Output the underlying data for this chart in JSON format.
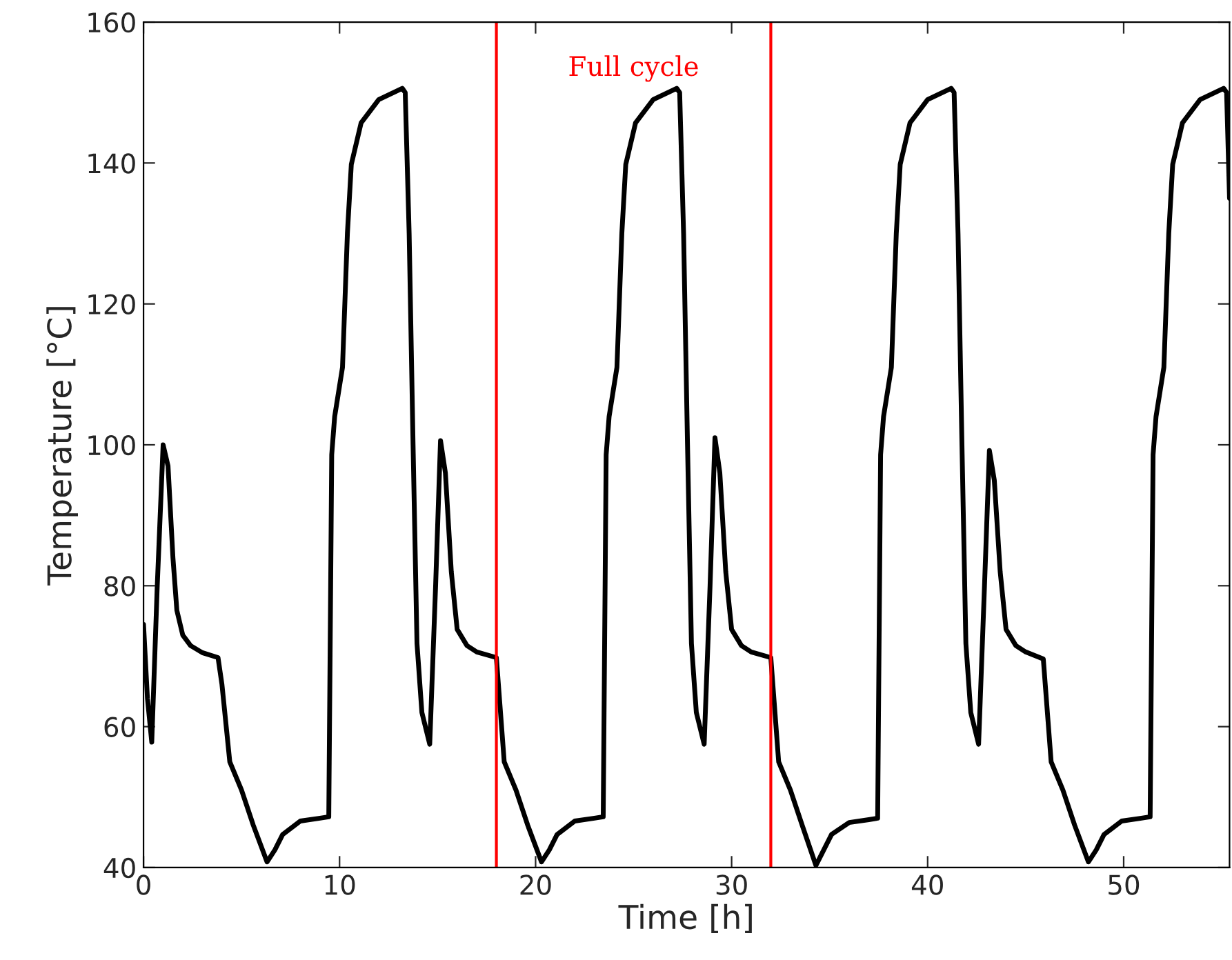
{
  "chart_data": {
    "type": "line",
    "xlabel": "Time [h]",
    "ylabel": "Temperature [°C]",
    "xlim": [
      0,
      55.4
    ],
    "ylim": [
      40,
      160
    ],
    "xticks": [
      0,
      10,
      20,
      30,
      40,
      50
    ],
    "yticks": [
      40,
      60,
      80,
      100,
      120,
      140,
      160
    ],
    "grid": false,
    "legend": false,
    "marker": "none",
    "line_style": "solid",
    "series": [
      {
        "color": "#000000",
        "x": [
          0,
          0.2,
          0.42,
          0.7,
          1.0,
          1.25,
          1.5,
          1.7,
          2.0,
          2.4,
          3.0,
          3.8,
          4.0,
          4.4,
          5.0,
          5.6,
          6.3,
          6.7,
          7.1,
          8.0,
          9.0,
          9.45,
          9.6,
          9.75,
          10.15,
          10.4,
          10.6,
          11.1,
          12.0,
          13.2,
          13.35,
          13.55,
          13.75,
          13.95,
          14.2,
          14.6,
          14.9,
          15.15,
          15.4,
          15.7,
          16.0,
          16.5,
          17.0,
          18.0,
          18.4,
          19.0,
          19.6,
          20.3,
          20.7,
          21.1,
          22.0,
          23.0,
          23.45,
          23.6,
          23.75,
          24.15,
          24.4,
          24.6,
          25.1,
          26.0,
          27.2,
          27.35,
          27.55,
          27.75,
          27.95,
          28.2,
          28.6,
          28.9,
          29.15,
          29.4,
          29.7,
          30.0,
          30.5,
          31.0,
          32.0,
          32.4,
          33.0,
          33.6,
          34.3,
          34.7,
          35.1,
          36.0,
          37.0,
          37.45,
          37.6,
          37.75,
          38.15,
          38.4,
          38.6,
          39.1,
          40.0,
          41.2,
          41.35,
          41.55,
          41.75,
          41.95,
          42.2,
          42.6,
          42.9,
          43.15,
          43.4,
          43.7,
          44.0,
          44.5,
          45.0,
          45.9,
          46.3,
          46.9,
          47.5,
          48.2,
          48.6,
          49.0,
          49.9,
          50.9,
          51.35,
          51.5,
          51.65,
          52.05,
          52.3,
          52.5,
          53.0,
          53.9,
          55.1,
          55.25,
          55.4
        ],
        "values": [
          74.5,
          64,
          57.8,
          80,
          100,
          97,
          84,
          76.5,
          73,
          71.5,
          70.5,
          69.8,
          66,
          55,
          51,
          46,
          40.8,
          42.5,
          44.7,
          46.6,
          47,
          47.2,
          98.6,
          104,
          111,
          130,
          139.8,
          145.7,
          149,
          150.6,
          150,
          130,
          100,
          71.8,
          62,
          57.5,
          80,
          100.6,
          96,
          82,
          73.8,
          71.5,
          70.6,
          69.8,
          55,
          51,
          46,
          40.8,
          42.5,
          44.7,
          46.6,
          47,
          47.2,
          98.6,
          104,
          111,
          130,
          139.8,
          145.7,
          149,
          150.6,
          150,
          130,
          100,
          71.8,
          62,
          57.5,
          80,
          101,
          96,
          82,
          73.8,
          71.5,
          70.6,
          69.8,
          55,
          51,
          46,
          40.3,
          42.5,
          44.7,
          46.4,
          46.8,
          47,
          98.6,
          104,
          111,
          130,
          139.8,
          145.7,
          149,
          150.6,
          150,
          130,
          100,
          71.8,
          62,
          57.5,
          80,
          99.2,
          95,
          82,
          73.8,
          71.5,
          70.6,
          69.6,
          55,
          51,
          46,
          40.8,
          42.5,
          44.7,
          46.6,
          47,
          47.2,
          98.6,
          104,
          111,
          130,
          139.8,
          145.7,
          149,
          150.6,
          150,
          135
        ]
      }
    ],
    "ref_lines": [
      {
        "axis": "x",
        "value": 18,
        "color": "#ff0000"
      },
      {
        "axis": "x",
        "value": 32,
        "color": "#ff0000"
      }
    ],
    "annotations": [
      "Full cycle"
    ]
  }
}
